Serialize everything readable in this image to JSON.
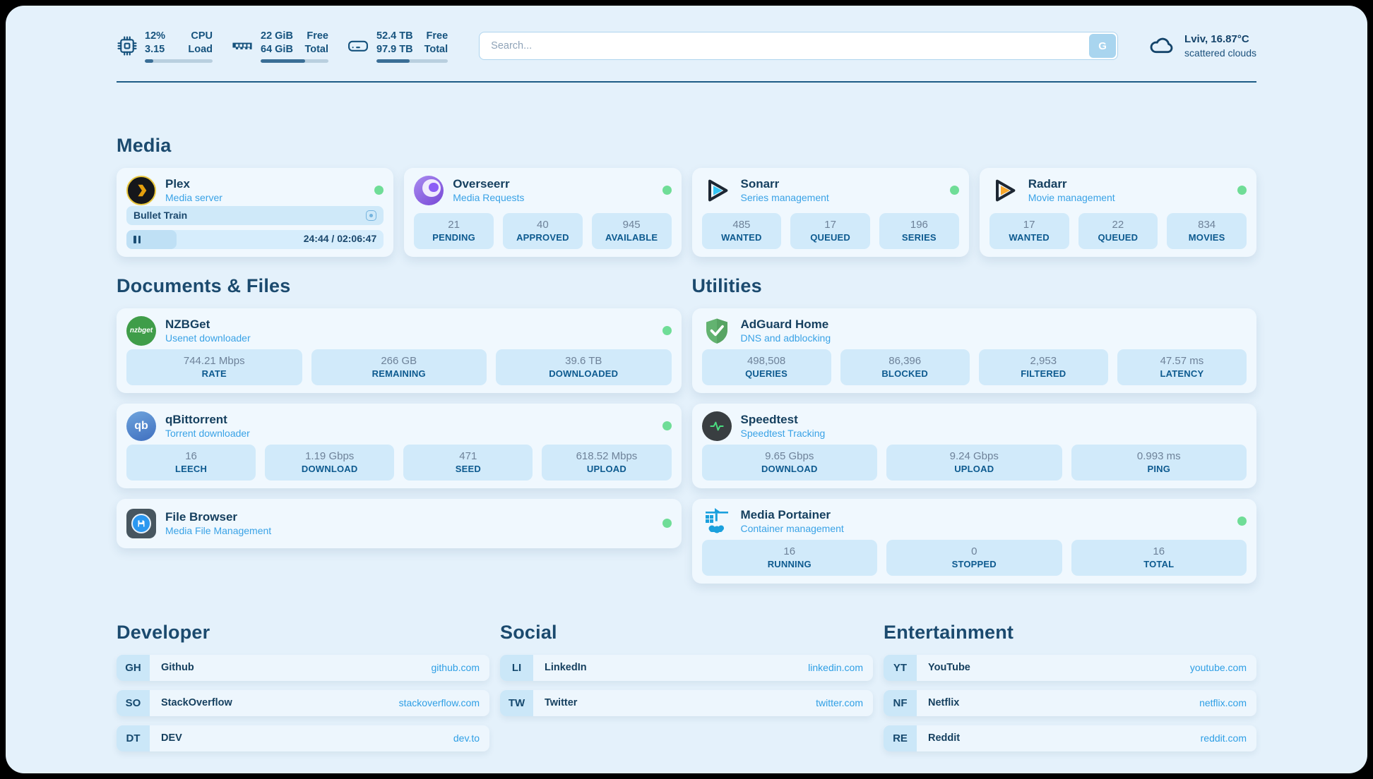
{
  "colors": {
    "page_bg": "#e4f1fb",
    "card_bg": "#f0f8fe",
    "stat_bg": "#d1eafa",
    "accent_blue": "#2f9fe5",
    "navy": "#16405f",
    "green_status": "#6fdd97",
    "progress_fill": "#3a6e96"
  },
  "topbar": {
    "cpu": {
      "icon": "cpu-chip-icon",
      "value1": "12%",
      "value2": "3.15",
      "label1": "CPU",
      "label2": "Load",
      "progress_pct": 12
    },
    "memory": {
      "icon": "ram-icon",
      "value1": "22 GiB",
      "value2": "64 GiB",
      "label1": "Free",
      "label2": "Total",
      "progress_pct": 66
    },
    "storage": {
      "icon": "hard-drive-icon",
      "value1": "52.4 TB",
      "value2": "97.9 TB",
      "label1": "Free",
      "label2": "Total",
      "progress_pct": 46
    },
    "search": {
      "placeholder": "Search...",
      "button_label": "G"
    },
    "weather": {
      "location_temp": "Lviv, 16.87°C",
      "condition": "scattered clouds",
      "icon": "cloud-icon"
    }
  },
  "sections": {
    "media": "Media",
    "documents": "Documents & Files",
    "utilities": "Utilities"
  },
  "apps": {
    "plex": {
      "icon": "plex-icon",
      "title": "Plex",
      "subtitle": "Media server",
      "now_playing": "Bullet Train",
      "time": "24:44 / 02:06:47",
      "progress_pct": 19.5
    },
    "overseerr": {
      "icon": "overseerr-icon",
      "title": "Overseerr",
      "subtitle": "Media Requests",
      "stats": [
        {
          "value": "21",
          "label": "PENDING"
        },
        {
          "value": "40",
          "label": "APPROVED"
        },
        {
          "value": "945",
          "label": "AVAILABLE"
        }
      ]
    },
    "sonarr": {
      "icon": "sonarr-icon",
      "title": "Sonarr",
      "subtitle": "Series management",
      "stats": [
        {
          "value": "485",
          "label": "WANTED"
        },
        {
          "value": "17",
          "label": "QUEUED"
        },
        {
          "value": "196",
          "label": "SERIES"
        }
      ]
    },
    "radarr": {
      "icon": "radarr-icon",
      "title": "Radarr",
      "subtitle": "Movie management",
      "stats": [
        {
          "value": "17",
          "label": "WANTED"
        },
        {
          "value": "22",
          "label": "QUEUED"
        },
        {
          "value": "834",
          "label": "MOVIES"
        }
      ]
    },
    "nzbget": {
      "icon": "nzbget-icon",
      "icon_text": "nzbget",
      "title": "NZBGet",
      "subtitle": "Usenet downloader",
      "stats": [
        {
          "value": "744.21 Mbps",
          "label": "RATE"
        },
        {
          "value": "266 GB",
          "label": "REMAINING"
        },
        {
          "value": "39.6 TB",
          "label": "DOWNLOADED"
        }
      ]
    },
    "adguard": {
      "icon": "adguard-shield-icon",
      "title": "AdGuard Home",
      "subtitle": "DNS and adblocking",
      "stats": [
        {
          "value": "498,508",
          "label": "QUERIES"
        },
        {
          "value": "86,396",
          "label": "BLOCKED"
        },
        {
          "value": "2,953",
          "label": "FILTERED"
        },
        {
          "value": "47.57 ms",
          "label": "LATENCY"
        }
      ]
    },
    "qbittorrent": {
      "icon": "qbittorrent-icon",
      "icon_text": "qb",
      "title": "qBittorrent",
      "subtitle": "Torrent downloader",
      "stats": [
        {
          "value": "16",
          "label": "LEECH"
        },
        {
          "value": "1.19 Gbps",
          "label": "DOWNLOAD"
        },
        {
          "value": "471",
          "label": "SEED"
        },
        {
          "value": "618.52 Mbps",
          "label": "UPLOAD"
        }
      ]
    },
    "speedtest": {
      "icon": "speedtest-pulse-icon",
      "title": "Speedtest",
      "subtitle": "Speedtest Tracking",
      "stats": [
        {
          "value": "9.65 Gbps",
          "label": "DOWNLOAD"
        },
        {
          "value": "9.24 Gbps",
          "label": "UPLOAD"
        },
        {
          "value": "0.993 ms",
          "label": "PING"
        }
      ]
    },
    "filebrowser": {
      "icon": "filebrowser-icon",
      "title": "File Browser",
      "subtitle": "Media File Management"
    },
    "portainer": {
      "icon": "portainer-crane-icon",
      "title": "Media Portainer",
      "subtitle": "Container management",
      "stats": [
        {
          "value": "16",
          "label": "RUNNING"
        },
        {
          "value": "0",
          "label": "STOPPED"
        },
        {
          "value": "16",
          "label": "TOTAL"
        }
      ]
    }
  },
  "links": {
    "developer": {
      "title": "Developer",
      "items": [
        {
          "abbr": "GH",
          "name": "Github",
          "url": "github.com"
        },
        {
          "abbr": "SO",
          "name": "StackOverflow",
          "url": "stackoverflow.com"
        },
        {
          "abbr": "DT",
          "name": "DEV",
          "url": "dev.to"
        }
      ]
    },
    "social": {
      "title": "Social",
      "items": [
        {
          "abbr": "LI",
          "name": "LinkedIn",
          "url": "linkedin.com"
        },
        {
          "abbr": "TW",
          "name": "Twitter",
          "url": "twitter.com"
        }
      ]
    },
    "entertainment": {
      "title": "Entertainment",
      "items": [
        {
          "abbr": "YT",
          "name": "YouTube",
          "url": "youtube.com"
        },
        {
          "abbr": "NF",
          "name": "Netflix",
          "url": "netflix.com"
        },
        {
          "abbr": "RE",
          "name": "Reddit",
          "url": "reddit.com"
        }
      ]
    }
  }
}
